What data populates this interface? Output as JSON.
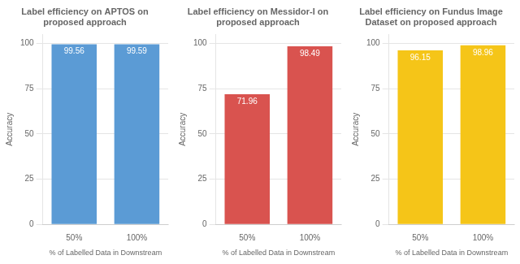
{
  "chart_data": [
    {
      "type": "bar",
      "title": "Label efficiency on APTOS on\nproposed approach",
      "categories": [
        "50%",
        "100%"
      ],
      "values": [
        99.56,
        99.59
      ],
      "color": "#5B9BD5",
      "xlabel": "% of Labelled Data in Downstream",
      "ylabel": "Accuracy",
      "ylim": [
        0,
        105
      ],
      "yticks": [
        0,
        25,
        50,
        75,
        100
      ],
      "grid": true,
      "data_labels": true
    },
    {
      "type": "bar",
      "title": "Label efficiency on Messidor-I on\nproposed approach",
      "categories": [
        "50%",
        "100%"
      ],
      "values": [
        71.96,
        98.49
      ],
      "color": "#D9534F",
      "xlabel": "% of Labelled Data in Downstream",
      "ylabel": "Accuracy",
      "ylim": [
        0,
        105
      ],
      "yticks": [
        0,
        25,
        50,
        75,
        100
      ],
      "grid": true,
      "data_labels": true
    },
    {
      "type": "bar",
      "title": "Label efficiency on Fundus Image\nDataset on proposed approach",
      "categories": [
        "50%",
        "100%"
      ],
      "values": [
        96.15,
        98.96
      ],
      "color": "#F5C518",
      "xlabel": "% of Labelled Data in Downstream",
      "ylabel": "Accuracy",
      "ylim": [
        0,
        105
      ],
      "yticks": [
        0,
        25,
        50,
        75,
        100
      ],
      "grid": true,
      "data_labels": true
    }
  ]
}
